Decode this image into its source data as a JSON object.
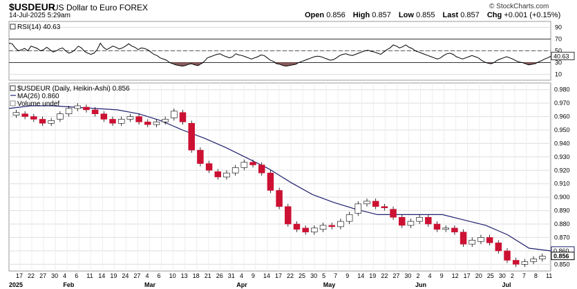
{
  "header": {
    "symbol": "$USDEUR",
    "description": "US Dollar to Euro FOREX",
    "date": "14-Jul-2025 5:29am",
    "brand": "© StockCharts.com",
    "open_label": "Open",
    "open": "0.856",
    "high_label": "High",
    "high": "0.857",
    "low_label": "Low",
    "low": "0.855",
    "last_label": "Last",
    "last": "0.857",
    "chg_label": "Chg",
    "chg": "+0.001 (+0.15%)"
  },
  "colors": {
    "up": "#ffffff",
    "down": "#cc1133",
    "ma": "#1e1e6e",
    "rsi": "#000000",
    "rsi_fill": "#8b5a5a",
    "grid": "#dddddd"
  },
  "chart_data": [
    {
      "type": "line",
      "title": "RSI(14) 40.63",
      "legend": "RSI(14) 40.63",
      "ylim": [
        0,
        100
      ],
      "yticks": [
        10,
        30,
        50,
        70,
        90
      ],
      "overbought": 70,
      "oversold": 30,
      "last_value_label": "40.63",
      "last_value": 40.63,
      "series": [
        {
          "name": "RSI(14)",
          "values": [
            63,
            62,
            55,
            50,
            52,
            54,
            50,
            58,
            56,
            54,
            50,
            52,
            56,
            52,
            48,
            50,
            53,
            55,
            50,
            46,
            48,
            52,
            58,
            55,
            49,
            46,
            44,
            46,
            52,
            63,
            56,
            52,
            55,
            58,
            56,
            53,
            55,
            58,
            62,
            58,
            56,
            52,
            55,
            54,
            52,
            48,
            44,
            42,
            38,
            36,
            34,
            30,
            28,
            26,
            25,
            24,
            25,
            27,
            28,
            26,
            25,
            28,
            32,
            38,
            40,
            42,
            44,
            45,
            42,
            40,
            38,
            40,
            45,
            43,
            42,
            40,
            38,
            36,
            38,
            40,
            43,
            42,
            38,
            34,
            32,
            28,
            27,
            25,
            24,
            25,
            26,
            27,
            30,
            32,
            34,
            36,
            38,
            40,
            41,
            40,
            38,
            36,
            34,
            35,
            38,
            42,
            44,
            45,
            43,
            42,
            44,
            46,
            48,
            50,
            51,
            49,
            48,
            46,
            44,
            48,
            52,
            55,
            60,
            58,
            55,
            57,
            60,
            56,
            54,
            50,
            48,
            46,
            44,
            42,
            40,
            38,
            36,
            38,
            42,
            45,
            46,
            44,
            40,
            38,
            36,
            38,
            40,
            42,
            40,
            38,
            34,
            31,
            29,
            28,
            30,
            34,
            36,
            38,
            40,
            38,
            36,
            33,
            31,
            30,
            28,
            26,
            27,
            28,
            31,
            33,
            36,
            38,
            40.63
          ]
        }
      ]
    },
    {
      "type": "candlestick",
      "title": "$USDEUR (Daily, Heikin-Ashi) 0.856",
      "legend": [
        "$USDEUR (Daily, Heikin-Ashi) 0.856",
        "MA(26) 0.860",
        "Volume undef"
      ],
      "ylim": [
        0.845,
        0.985
      ],
      "yticks": [
        0.85,
        0.86,
        0.87,
        0.88,
        0.89,
        0.9,
        0.91,
        0.92,
        0.93,
        0.94,
        0.95,
        0.96,
        0.97,
        0.98
      ],
      "ytick_labels": [
        "0.850",
        "0.860",
        "0.870",
        "0.880",
        "0.890",
        "0.900",
        "0.910",
        "0.920",
        "0.930",
        "0.940",
        "0.950",
        "0.960",
        "0.970",
        "0.980"
      ],
      "last_close_label": "0.856",
      "ma_label": "0.860",
      "x_tick_labels": [
        "17",
        "22",
        "27",
        "30",
        "4",
        "6",
        "11",
        "14",
        "19",
        "24",
        "27",
        "4",
        "6",
        "10",
        "13",
        "18",
        "21",
        "26",
        "31",
        "4",
        "9",
        "14",
        "17",
        "22",
        "25",
        "30",
        "5",
        "7",
        "9",
        "14",
        "19",
        "22",
        "27",
        "30",
        "2",
        "4",
        "9",
        "12",
        "17",
        "20",
        "25",
        "30",
        "2",
        "7",
        "8",
        "11"
      ],
      "month_labels": [
        "2025",
        "Feb",
        "Mar",
        "Apr",
        "May",
        "Jun",
        "Jul"
      ],
      "ma26": [
        0.966,
        0.968,
        0.968,
        0.967,
        0.966,
        0.965,
        0.962,
        0.957,
        0.95,
        0.944,
        0.937,
        0.929,
        0.921,
        0.911,
        0.902,
        0.896,
        0.891,
        0.887,
        0.887,
        0.887,
        0.887,
        0.883,
        0.879,
        0.872,
        0.862,
        0.86
      ],
      "closes": [
        0.963,
        0.96,
        0.958,
        0.955,
        0.957,
        0.962,
        0.966,
        0.968,
        0.965,
        0.962,
        0.958,
        0.955,
        0.958,
        0.96,
        0.956,
        0.954,
        0.956,
        0.958,
        0.964,
        0.956,
        0.935,
        0.925,
        0.92,
        0.915,
        0.918,
        0.922,
        0.926,
        0.924,
        0.918,
        0.905,
        0.893,
        0.88,
        0.876,
        0.874,
        0.877,
        0.879,
        0.878,
        0.882,
        0.887,
        0.895,
        0.897,
        0.893,
        0.892,
        0.885,
        0.879,
        0.882,
        0.885,
        0.88,
        0.876,
        0.877,
        0.874,
        0.865,
        0.868,
        0.87,
        0.866,
        0.86,
        0.853,
        0.85,
        0.852,
        0.854,
        0.856
      ],
      "opens": [
        0.961,
        0.962,
        0.96,
        0.958,
        0.955,
        0.958,
        0.962,
        0.966,
        0.967,
        0.965,
        0.962,
        0.958,
        0.955,
        0.958,
        0.96,
        0.956,
        0.954,
        0.956,
        0.959,
        0.963,
        0.955,
        0.935,
        0.925,
        0.919,
        0.915,
        0.918,
        0.922,
        0.926,
        0.924,
        0.918,
        0.905,
        0.893,
        0.88,
        0.877,
        0.874,
        0.876,
        0.879,
        0.878,
        0.882,
        0.888,
        0.895,
        0.897,
        0.893,
        0.891,
        0.885,
        0.879,
        0.882,
        0.885,
        0.88,
        0.876,
        0.877,
        0.874,
        0.865,
        0.867,
        0.87,
        0.866,
        0.86,
        0.853,
        0.85,
        0.852,
        0.854
      ]
    }
  ]
}
